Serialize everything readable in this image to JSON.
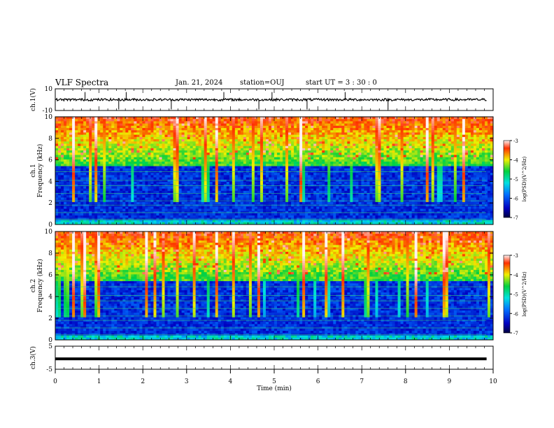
{
  "header": {
    "title": "VLF Spectra",
    "date": "Jan. 21, 2024",
    "station": "station=OUJ",
    "start": "start UT =  3 : 30 : 0"
  },
  "chart_data": [
    {
      "type": "line",
      "id": "ch1-waveform",
      "ylabel": "ch.1(V)",
      "ylim": [
        -10,
        10
      ],
      "yticks": [
        10,
        -10
      ],
      "xlim": [
        0,
        10
      ],
      "baseline_approx": 0,
      "spikes_x_min": [
        0.68,
        1.45,
        1.62,
        2.65,
        3.85,
        4.65,
        4.95,
        5.75,
        6.62,
        7.6
      ]
    },
    {
      "type": "heatmap",
      "id": "ch1-spectrogram",
      "ylabel_1": "ch.1",
      "ylabel_2": "Frequency (kHz)",
      "ylim": [
        0,
        10
      ],
      "yticks": [
        0,
        2,
        4,
        6,
        8,
        10
      ],
      "xlim": [
        0,
        10
      ],
      "xlabel": "",
      "colorbar": {
        "label": "log(PSD)(V^2/Hz)",
        "range": [
          -7,
          -3
        ],
        "ticks": [
          -3,
          -4,
          -5,
          -6,
          -7
        ]
      }
    },
    {
      "type": "heatmap",
      "id": "ch2-spectrogram",
      "ylabel_1": "ch.2",
      "ylabel_2": "Frequency (kHz)",
      "ylim": [
        0,
        10
      ],
      "yticks": [
        0,
        2,
        4,
        6,
        8,
        10
      ],
      "xlim": [
        0,
        10
      ],
      "colorbar": {
        "label": "log(PSD)(V^2/Hz)",
        "range": [
          -7,
          -3
        ],
        "ticks": [
          -3,
          -4,
          -5,
          -6,
          -7
        ]
      }
    },
    {
      "type": "line",
      "id": "ch3-waveform",
      "ylabel": "ch.3(V)",
      "ylim": [
        -5,
        5
      ],
      "yticks": [
        5,
        -5
      ],
      "xlim": [
        0,
        10
      ],
      "constant_value": -0.5,
      "xlabel": "Time (min)",
      "xticks": [
        0,
        1,
        2,
        3,
        4,
        5,
        6,
        7,
        8,
        9,
        10
      ]
    }
  ]
}
